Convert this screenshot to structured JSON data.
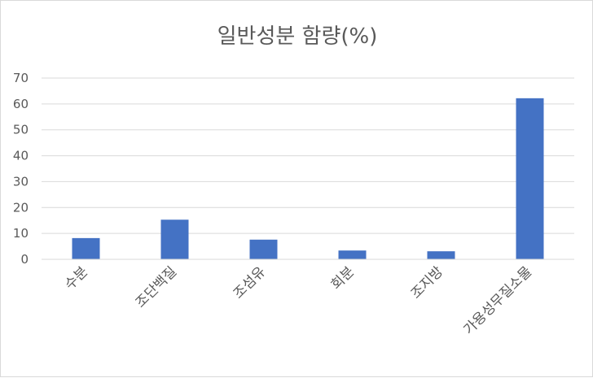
{
  "chart_data": {
    "type": "bar",
    "title": "일반성분 함량(%)",
    "categories": [
      "수분",
      "조단백질",
      "조섬유",
      "회분",
      "조지방",
      "가용성무질소물"
    ],
    "values": [
      8.2,
      15.3,
      7.6,
      3.4,
      3.1,
      62.2
    ],
    "ylim": [
      0,
      70
    ],
    "yticks": [
      0,
      10,
      20,
      30,
      40,
      50,
      60,
      70
    ],
    "grid": true,
    "legend": "none",
    "bar_color": "#4472C4"
  }
}
